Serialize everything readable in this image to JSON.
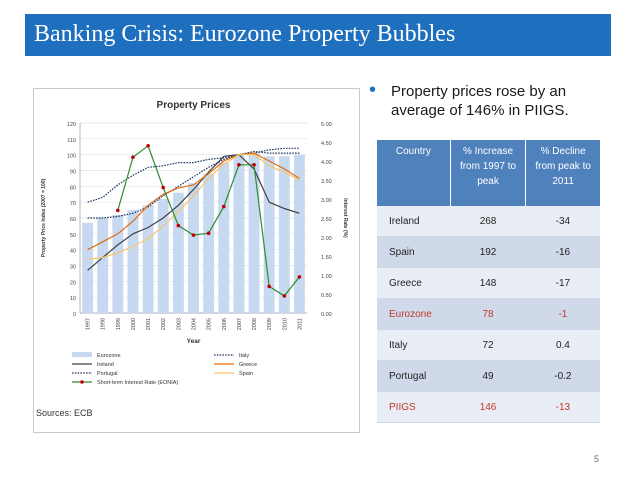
{
  "slide": {
    "title": "Banking Crisis: Eurozone Property Bubbles",
    "bullet": "Property prices rose by an average of 146% in PIIGS.",
    "sources": "Sources: ECB",
    "page_number": "5"
  },
  "colors": {
    "title_bar": "#1f6fbf",
    "table_header": "#4f81bd",
    "highlight_text": "#c0392b",
    "eurozone_bar": "#c6d9f1",
    "ireland": "#404040",
    "portugal": "#1f3864",
    "italy": "#1f3864",
    "greece": "#e36c0a",
    "spain": "#f9c56b",
    "eonia": "#2e8b2e",
    "eonia_marker": "#c00000"
  },
  "table": {
    "headers": [
      "Country",
      "% Increase from 1997 to peak",
      "% Decline from peak to 2011"
    ],
    "rows": [
      {
        "country": "Ireland",
        "increase": "268",
        "decline": "-34",
        "highlight": false
      },
      {
        "country": "Spain",
        "increase": "192",
        "decline": "-16",
        "highlight": false
      },
      {
        "country": "Greece",
        "increase": "148",
        "decline": "-17",
        "highlight": false
      },
      {
        "country": "Eurozone",
        "increase": "78",
        "decline": "-1",
        "highlight": true
      },
      {
        "country": "Italy",
        "increase": "72",
        "decline": "0.4",
        "highlight": false
      },
      {
        "country": "Portugal",
        "increase": "49",
        "decline": "-0.2",
        "highlight": false
      },
      {
        "country": "PIIGS",
        "increase": "146",
        "decline": "-13",
        "highlight": true
      }
    ]
  },
  "chart_data": {
    "type": "bar+line",
    "title": "Property Prices",
    "xlabel": "Year",
    "ylabel": "Property Price Index (2007 = 100)",
    "y2label": "Interest Rate (%)",
    "categories": [
      "1997",
      "1998",
      "1999",
      "2000",
      "2001",
      "2002",
      "2003",
      "2004",
      "2005",
      "2006",
      "2007",
      "2008",
      "2009",
      "2010",
      "2011"
    ],
    "ylim": [
      0,
      120
    ],
    "y_ticks": [
      "0",
      "10",
      "20",
      "30",
      "40",
      "50",
      "60",
      "70",
      "80",
      "90",
      "100",
      "110",
      "120"
    ],
    "y2lim": [
      0,
      5
    ],
    "y2_ticks": [
      "0.00",
      "0.50",
      "1.00",
      "1.50",
      "2.00",
      "2.50",
      "3.00",
      "3.50",
      "4.00",
      "4.50",
      "5.00"
    ],
    "bars": {
      "name": "Eurozone",
      "values": [
        57,
        60,
        62,
        65,
        68,
        72,
        76,
        82,
        88,
        95,
        100,
        101,
        99,
        99,
        100
      ]
    },
    "series": [
      {
        "name": "Ireland",
        "axis": "left",
        "style": "solid",
        "values": [
          27,
          35,
          43,
          50,
          54,
          60,
          68,
          78,
          89,
          99,
          100,
          91,
          70,
          66,
          63
        ]
      },
      {
        "name": "Portugal",
        "axis": "left",
        "style": "dotted",
        "values": [
          70,
          73,
          81,
          87,
          92,
          93,
          95,
          95,
          97,
          98,
          100,
          101,
          103,
          104,
          104
        ]
      },
      {
        "name": "Italy",
        "axis": "left",
        "style": "dotted",
        "values": [
          60,
          60,
          61,
          63,
          67,
          74,
          80,
          86,
          92,
          97,
          100,
          102,
          101,
          101,
          101
        ]
      },
      {
        "name": "Greece",
        "axis": "left",
        "style": "solid",
        "values": [
          40,
          45,
          50,
          58,
          68,
          75,
          79,
          81,
          88,
          96,
          100,
          101,
          96,
          91,
          85
        ]
      },
      {
        "name": "Spain",
        "axis": "left",
        "style": "solid",
        "values": [
          34,
          35,
          38,
          42,
          47,
          55,
          64,
          74,
          85,
          94,
          100,
          100,
          93,
          89,
          84
        ]
      },
      {
        "name": "Short-term Interest Rate (EONIA)",
        "axis": "right",
        "style": "solid-markers",
        "values": [
          null,
          null,
          2.7,
          4.1,
          4.4,
          3.3,
          2.3,
          2.05,
          2.1,
          2.8,
          3.9,
          3.9,
          0.7,
          0.45,
          0.95
        ]
      }
    ],
    "legend": [
      "Eurozone",
      "Italy",
      "Ireland",
      "Greece",
      "Portugal",
      "Spain",
      "Short-term Interest Rate (EONIA)"
    ]
  }
}
